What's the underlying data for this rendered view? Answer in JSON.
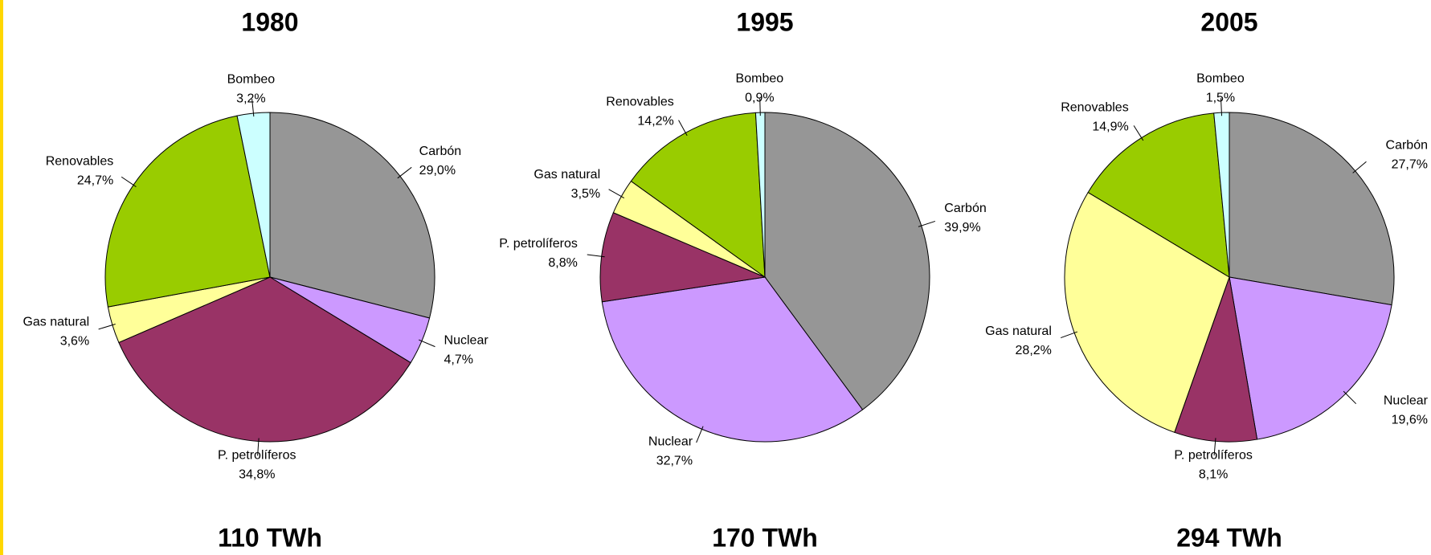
{
  "chart_data": [
    {
      "type": "pie",
      "title": "1980",
      "subtitle": "110 TWh",
      "categories": [
        "Carbón",
        "Nuclear",
        "P. petrolíferos",
        "Gas natural",
        "Renovables",
        "Bombeo"
      ],
      "values": [
        29.0,
        4.7,
        34.8,
        3.6,
        24.7,
        3.2
      ],
      "value_labels": [
        "29,0%",
        "4,7%",
        "34,8%",
        "3,6%",
        "24,7%",
        "3,2%"
      ],
      "colors": [
        "#969696",
        "#cc99ff",
        "#993366",
        "#ffff99",
        "#99cc00",
        "#ccffff"
      ]
    },
    {
      "type": "pie",
      "title": "1995",
      "subtitle": "170 TWh",
      "categories": [
        "Carbón",
        "Nuclear",
        "P. petrolíferos",
        "Gas natural",
        "Renovables",
        "Bombeo"
      ],
      "values": [
        39.9,
        32.7,
        8.8,
        3.5,
        14.2,
        0.9
      ],
      "value_labels": [
        "39,9%",
        "32,7%",
        "8,8%",
        "3,5%",
        "14,2%",
        "0,9%"
      ],
      "colors": [
        "#969696",
        "#cc99ff",
        "#993366",
        "#ffff99",
        "#99cc00",
        "#ccffff"
      ]
    },
    {
      "type": "pie",
      "title": "2005",
      "subtitle": "294 TWh",
      "categories": [
        "Carbón",
        "Nuclear",
        "P. petrolíferos",
        "Gas natural",
        "Renovables",
        "Bombeo"
      ],
      "values": [
        27.7,
        19.6,
        8.1,
        28.2,
        14.9,
        1.5
      ],
      "value_labels": [
        "27,7%",
        "19,6%",
        "8,1%",
        "28,2%",
        "14,9%",
        "1,5%"
      ],
      "colors": [
        "#969696",
        "#cc99ff",
        "#993366",
        "#ffff99",
        "#99cc00",
        "#ccffff"
      ]
    }
  ]
}
